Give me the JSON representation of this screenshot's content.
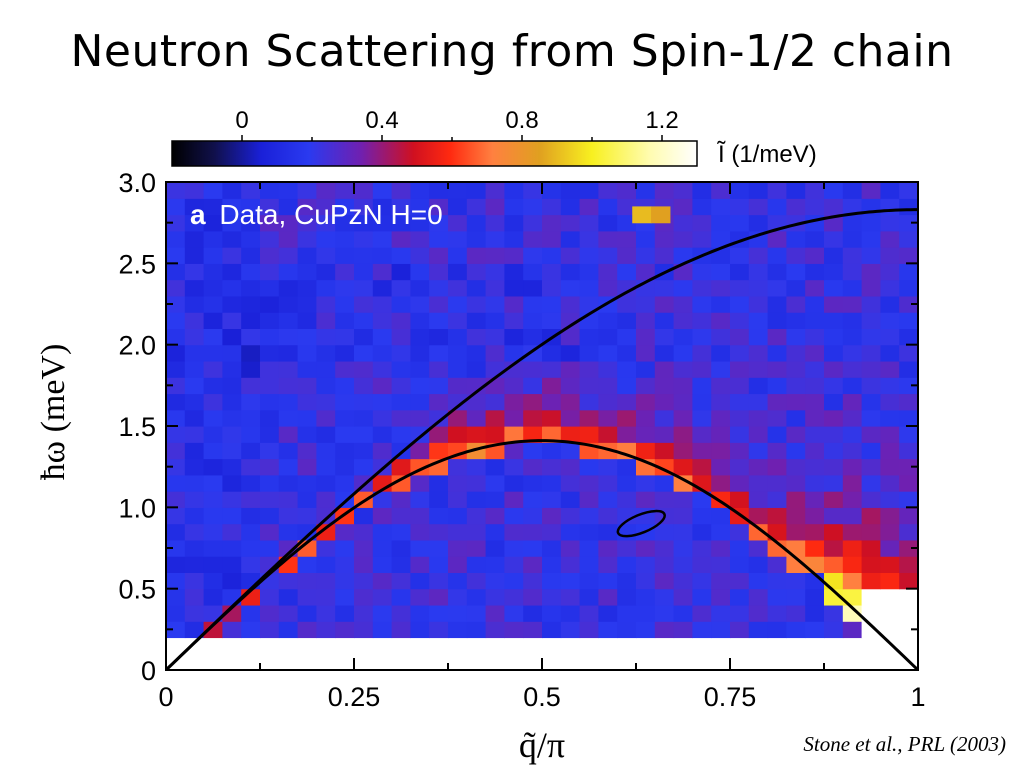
{
  "slide": {
    "title": "Neutron Scattering from Spin-1/2 chain",
    "citation": "Stone et al., PRL (2003)"
  },
  "chart_data": {
    "type": "heatmap",
    "panel_label": "a",
    "panel_text": "Data, CuPzN H=0",
    "xlabel": "q̃/π",
    "ylabel": "ħω (meV)",
    "xlim": [
      0,
      1
    ],
    "ylim": [
      0,
      3.0
    ],
    "x_ticks": [
      "0",
      "0.25",
      "0.5",
      "0.75",
      "1"
    ],
    "y_ticks": [
      "0",
      "0.5",
      "1.0",
      "1.5",
      "2.0",
      "2.5",
      "3.0"
    ],
    "data_ymin": 0.2,
    "colorbar": {
      "label": "Ĩ (1/meV)",
      "ticks": [
        "0",
        "0.4",
        "0.8",
        "1.2"
      ],
      "range": [
        -0.2,
        1.3
      ]
    },
    "curves": [
      {
        "description": "upper boundary",
        "formula": "E = 2·J·π/2·sin(πq/2)",
        "max_energy": 2.83
      },
      {
        "description": "lower boundary (des Cloizeaux–Pearson)",
        "formula": "E = J·π/2·|sin(πq)|",
        "max_energy": 1.41
      }
    ],
    "resolution_ellipse": {
      "q": 0.632,
      "E": 0.9
    },
    "grid": false
  }
}
